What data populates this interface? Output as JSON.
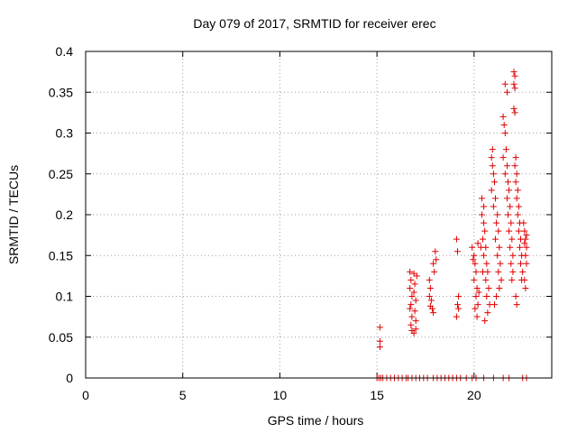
{
  "chart_data": {
    "type": "scatter",
    "title": "Day 079 of 2017, SRMTID for receiver erec",
    "xlabel": "GPS time / hours",
    "ylabel": "SRMTID / TECUs",
    "xlim": [
      0,
      24
    ],
    "ylim": [
      0,
      0.4
    ],
    "x_ticks": [
      0,
      5,
      10,
      15,
      20
    ],
    "x_tick_labels": [
      "0",
      "5",
      "10",
      "15",
      "20"
    ],
    "y_ticks": [
      0,
      0.05,
      0.1,
      0.15,
      0.2,
      0.25,
      0.3,
      0.35,
      0.4
    ],
    "y_tick_labels": [
      "0",
      "0.05",
      "0.1",
      "0.15",
      "0.2",
      "0.25",
      "0.3",
      "0.35",
      "0.4"
    ],
    "grid": true,
    "marker": "+",
    "color": "#e00000",
    "series": [
      {
        "name": "SRMTID",
        "points": [
          [
            15.0,
            0.0
          ],
          [
            15.1,
            0.0
          ],
          [
            15.2,
            0.0
          ],
          [
            15.3,
            0.0
          ],
          [
            15.5,
            0.0
          ],
          [
            15.7,
            0.0
          ],
          [
            15.9,
            0.0
          ],
          [
            16.1,
            0.0
          ],
          [
            16.3,
            0.0
          ],
          [
            16.5,
            0.0
          ],
          [
            16.6,
            0.0
          ],
          [
            16.8,
            0.0
          ],
          [
            17.0,
            0.0
          ],
          [
            17.2,
            0.0
          ],
          [
            17.4,
            0.0
          ],
          [
            17.6,
            0.0
          ],
          [
            17.9,
            0.0
          ],
          [
            18.1,
            0.0
          ],
          [
            18.3,
            0.0
          ],
          [
            18.5,
            0.0
          ],
          [
            18.7,
            0.0
          ],
          [
            18.9,
            0.0
          ],
          [
            19.1,
            0.0
          ],
          [
            19.3,
            0.0
          ],
          [
            19.6,
            0.0
          ],
          [
            19.9,
            0.0
          ],
          [
            20.1,
            0.0
          ],
          [
            20.5,
            0.0
          ],
          [
            21.0,
            0.0
          ],
          [
            21.5,
            0.0
          ],
          [
            21.8,
            0.0
          ],
          [
            22.5,
            0.0
          ],
          [
            22.7,
            0.0
          ],
          [
            15.15,
            0.062
          ],
          [
            15.15,
            0.045
          ],
          [
            15.15,
            0.038
          ],
          [
            16.7,
            0.13
          ],
          [
            16.75,
            0.12
          ],
          [
            16.7,
            0.11
          ],
          [
            16.8,
            0.1
          ],
          [
            16.75,
            0.09
          ],
          [
            16.7,
            0.085
          ],
          [
            16.8,
            0.075
          ],
          [
            16.75,
            0.065
          ],
          [
            16.8,
            0.058
          ],
          [
            16.9,
            0.055
          ],
          [
            16.9,
            0.128
          ],
          [
            16.95,
            0.115
          ],
          [
            16.9,
            0.105
          ],
          [
            17.0,
            0.095
          ],
          [
            16.95,
            0.082
          ],
          [
            17.0,
            0.07
          ],
          [
            17.05,
            0.125
          ],
          [
            17.0,
            0.06
          ],
          [
            17.7,
            0.12
          ],
          [
            17.75,
            0.11
          ],
          [
            17.7,
            0.1
          ],
          [
            17.8,
            0.095
          ],
          [
            17.75,
            0.088
          ],
          [
            17.9,
            0.14
          ],
          [
            17.95,
            0.13
          ],
          [
            18.0,
            0.155
          ],
          [
            18.05,
            0.145
          ],
          [
            17.85,
            0.085
          ],
          [
            17.9,
            0.08
          ],
          [
            19.1,
            0.17
          ],
          [
            19.15,
            0.155
          ],
          [
            19.2,
            0.1
          ],
          [
            19.15,
            0.09
          ],
          [
            19.2,
            0.085
          ],
          [
            19.1,
            0.075
          ],
          [
            19.9,
            0.16
          ],
          [
            20.0,
            0.15
          ],
          [
            20.05,
            0.14
          ],
          [
            20.1,
            0.13
          ],
          [
            20.0,
            0.12
          ],
          [
            20.15,
            0.11
          ],
          [
            20.1,
            0.1
          ],
          [
            20.2,
            0.09
          ],
          [
            20.05,
            0.085
          ],
          [
            20.15,
            0.075
          ],
          [
            20.2,
            0.165
          ],
          [
            19.95,
            0.145
          ],
          [
            20.25,
            0.105
          ],
          [
            20.4,
            0.2
          ],
          [
            20.5,
            0.19
          ],
          [
            20.55,
            0.18
          ],
          [
            20.45,
            0.17
          ],
          [
            20.6,
            0.16
          ],
          [
            20.5,
            0.15
          ],
          [
            20.65,
            0.14
          ],
          [
            20.7,
            0.13
          ],
          [
            20.6,
            0.12
          ],
          [
            20.75,
            0.11
          ],
          [
            20.65,
            0.1
          ],
          [
            20.8,
            0.09
          ],
          [
            20.7,
            0.08
          ],
          [
            20.55,
            0.07
          ],
          [
            20.4,
            0.22
          ],
          [
            20.5,
            0.21
          ],
          [
            20.35,
            0.16
          ],
          [
            20.45,
            0.13
          ],
          [
            20.9,
            0.27
          ],
          [
            20.95,
            0.26
          ],
          [
            21.0,
            0.25
          ],
          [
            21.05,
            0.24
          ],
          [
            20.9,
            0.23
          ],
          [
            21.1,
            0.22
          ],
          [
            21.0,
            0.21
          ],
          [
            21.2,
            0.2
          ],
          [
            21.15,
            0.19
          ],
          [
            21.25,
            0.18
          ],
          [
            21.1,
            0.17
          ],
          [
            21.3,
            0.16
          ],
          [
            21.2,
            0.15
          ],
          [
            21.35,
            0.14
          ],
          [
            21.25,
            0.13
          ],
          [
            21.4,
            0.12
          ],
          [
            21.3,
            0.11
          ],
          [
            21.15,
            0.1
          ],
          [
            21.05,
            0.09
          ],
          [
            20.95,
            0.28
          ],
          [
            21.5,
            0.32
          ],
          [
            21.55,
            0.31
          ],
          [
            21.6,
            0.3
          ],
          [
            21.65,
            0.28
          ],
          [
            21.5,
            0.27
          ],
          [
            21.7,
            0.26
          ],
          [
            21.6,
            0.25
          ],
          [
            21.75,
            0.24
          ],
          [
            21.8,
            0.23
          ],
          [
            21.7,
            0.22
          ],
          [
            21.85,
            0.21
          ],
          [
            21.75,
            0.2
          ],
          [
            21.9,
            0.19
          ],
          [
            21.8,
            0.18
          ],
          [
            21.95,
            0.17
          ],
          [
            21.85,
            0.16
          ],
          [
            22.0,
            0.15
          ],
          [
            21.9,
            0.14
          ],
          [
            22.0,
            0.13
          ],
          [
            21.95,
            0.12
          ],
          [
            21.6,
            0.36
          ],
          [
            21.7,
            0.35
          ],
          [
            22.05,
            0.375
          ],
          [
            22.1,
            0.37
          ],
          [
            22.05,
            0.36
          ],
          [
            22.1,
            0.355
          ],
          [
            22.05,
            0.33
          ],
          [
            22.1,
            0.325
          ],
          [
            22.15,
            0.27
          ],
          [
            22.1,
            0.26
          ],
          [
            22.2,
            0.25
          ],
          [
            22.15,
            0.24
          ],
          [
            22.25,
            0.23
          ],
          [
            22.2,
            0.22
          ],
          [
            22.3,
            0.21
          ],
          [
            22.25,
            0.2
          ],
          [
            22.35,
            0.19
          ],
          [
            22.3,
            0.18
          ],
          [
            22.4,
            0.17
          ],
          [
            22.35,
            0.16
          ],
          [
            22.45,
            0.15
          ],
          [
            22.4,
            0.14
          ],
          [
            22.5,
            0.13
          ],
          [
            22.45,
            0.12
          ],
          [
            22.15,
            0.1
          ],
          [
            22.2,
            0.09
          ],
          [
            22.55,
            0.19
          ],
          [
            22.6,
            0.18
          ],
          [
            22.65,
            0.17
          ],
          [
            22.6,
            0.165
          ],
          [
            22.7,
            0.16
          ],
          [
            22.65,
            0.15
          ],
          [
            22.7,
            0.14
          ],
          [
            22.6,
            0.12
          ],
          [
            22.65,
            0.11
          ],
          [
            22.7,
            0.175
          ]
        ]
      }
    ]
  }
}
